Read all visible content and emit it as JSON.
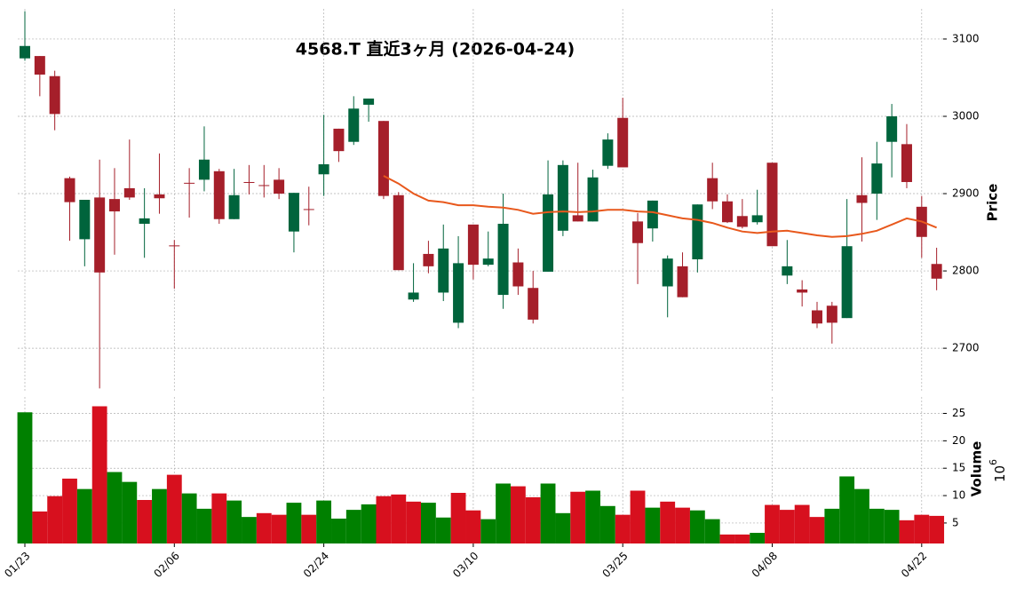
{
  "chart_data": {
    "type": "candlestick",
    "title": "4568.T  直近3ヶ月  (2026-04-24)",
    "ylabel": "Price",
    "categories": [
      "01/23",
      null,
      null,
      null,
      null,
      null,
      null,
      null,
      null,
      null,
      "02/06",
      null,
      null,
      null,
      null,
      null,
      null,
      null,
      null,
      null,
      "02/24",
      null,
      null,
      null,
      null,
      null,
      null,
      null,
      null,
      null,
      "03/10",
      null,
      null,
      null,
      null,
      null,
      null,
      null,
      null,
      null,
      "03/25",
      null,
      null,
      null,
      null,
      null,
      null,
      null,
      null,
      null,
      "04/08",
      null,
      null,
      null,
      null,
      null,
      null,
      null,
      null,
      null,
      "04/22",
      null
    ],
    "open": [
      3075,
      3078,
      3052,
      2920,
      2841,
      2895,
      2893,
      2907,
      2861,
      2899,
      2833,
      2914,
      2918,
      2929,
      2867,
      2915,
      2911,
      2918,
      2851,
      2880,
      2925,
      2984,
      2967,
      3015,
      2994,
      2898,
      2763,
      2822,
      2772,
      2733,
      2860,
      2808,
      2769,
      2811,
      2778,
      2799,
      2852,
      2872,
      2864,
      2936,
      2998,
      2864,
      2855,
      2780,
      2806,
      2815,
      2920,
      2890,
      2871,
      2863,
      2940,
      2794,
      2776,
      2749,
      2755,
      2739,
      2898,
      2900,
      2967,
      2964,
      2883,
      2809
    ],
    "high": [
      3136,
      3078,
      3059,
      2922,
      2892,
      2944,
      2933,
      2970,
      2907,
      2952,
      2840,
      2933,
      2987,
      2932,
      2932,
      2937,
      2937,
      2933,
      2901,
      2909,
      3002,
      2984,
      3026,
      3023,
      2994,
      2902,
      2810,
      2839,
      2860,
      2845,
      2860,
      2851,
      2900,
      2829,
      2800,
      2943,
      2943,
      2940,
      2931,
      2978,
      3024,
      2875,
      2891,
      2820,
      2824,
      2886,
      2940,
      2899,
      2893,
      2905,
      2940,
      2840,
      2788,
      2760,
      2760,
      2893,
      2947,
      2967,
      3016,
      2990,
      2897,
      2830
    ],
    "low": [
      3072,
      3026,
      2982,
      2839,
      2806,
      2648,
      2821,
      2892,
      2817,
      2874,
      2777,
      2869,
      2903,
      2861,
      2867,
      2899,
      2895,
      2893,
      2824,
      2859,
      2897,
      2941,
      2963,
      2993,
      2893,
      2801,
      2760,
      2797,
      2761,
      2726,
      2789,
      2806,
      2751,
      2769,
      2732,
      2799,
      2845,
      2864,
      2864,
      2932,
      2934,
      2783,
      2838,
      2740,
      2766,
      2798,
      2880,
      2862,
      2855,
      2860,
      2832,
      2783,
      2754,
      2726,
      2706,
      2739,
      2838,
      2866,
      2921,
      2907,
      2817,
      2775
    ],
    "close": [
      3091,
      3054,
      3003,
      2889,
      2892,
      2798,
      2877,
      2895,
      2868,
      2894,
      2832,
      2913,
      2944,
      2867,
      2898,
      2914,
      2910,
      2900,
      2901,
      2879,
      2938,
      2955,
      3010,
      3023,
      2897,
      2801,
      2772,
      2806,
      2829,
      2810,
      2808,
      2816,
      2861,
      2780,
      2737,
      2899,
      2937,
      2864,
      2921,
      2970,
      2934,
      2836,
      2891,
      2816,
      2766,
      2886,
      2890,
      2863,
      2857,
      2872,
      2832,
      2806,
      2772,
      2732,
      2733,
      2832,
      2888,
      2939,
      3000,
      2915,
      2844,
      2790
    ],
    "up_color": "#00643c",
    "down_color": "#a51f2a",
    "ma": {
      "color": "#e8581c",
      "values": [
        null,
        null,
        null,
        null,
        null,
        null,
        null,
        null,
        null,
        null,
        null,
        null,
        null,
        null,
        null,
        null,
        null,
        null,
        null,
        null,
        null,
        null,
        null,
        null,
        2923,
        2913,
        2900,
        2891,
        2889,
        2885,
        2885,
        2883,
        2882,
        2879,
        2874,
        2876,
        2877,
        2876,
        2877,
        2879,
        2879,
        2877,
        2876,
        2872,
        2868,
        2866,
        2862,
        2856,
        2851,
        2849,
        2851,
        2852,
        2849,
        2846,
        2844,
        2845,
        2848,
        2852,
        2860,
        2868,
        2864,
        2856
      ]
    },
    "ylim": [
      2645,
      3139
    ],
    "yticks": [
      2700,
      2800,
      2900,
      3000,
      3100
    ],
    "grid": true,
    "volume": {
      "label": "Volume",
      "offset_base": "10",
      "offset_exponent": "6",
      "up_color": "#008000",
      "down_color": "#d7101e",
      "values": [
        25.2,
        7.1,
        9.9,
        13.1,
        11.2,
        26.3,
        14.3,
        12.5,
        9.2,
        11.2,
        13.8,
        10.4,
        7.6,
        10.4,
        9.1,
        6.1,
        6.8,
        6.5,
        8.7,
        6.5,
        9.1,
        5.8,
        7.4,
        8.4,
        9.9,
        10.2,
        8.9,
        8.7,
        6.0,
        10.5,
        7.3,
        5.7,
        12.2,
        11.7,
        9.7,
        12.2,
        6.8,
        10.7,
        10.9,
        8.1,
        6.5,
        10.9,
        7.8,
        8.9,
        7.8,
        7.3,
        5.7,
        2.9,
        2.9,
        3.2,
        8.3,
        7.4,
        8.3,
        6.1,
        7.6,
        13.5,
        11.2,
        7.6,
        7.4,
        5.5,
        6.5,
        6.3
      ],
      "ylim": [
        1.26,
        28
      ],
      "yticks": [
        5,
        10,
        15,
        20,
        25
      ]
    }
  }
}
